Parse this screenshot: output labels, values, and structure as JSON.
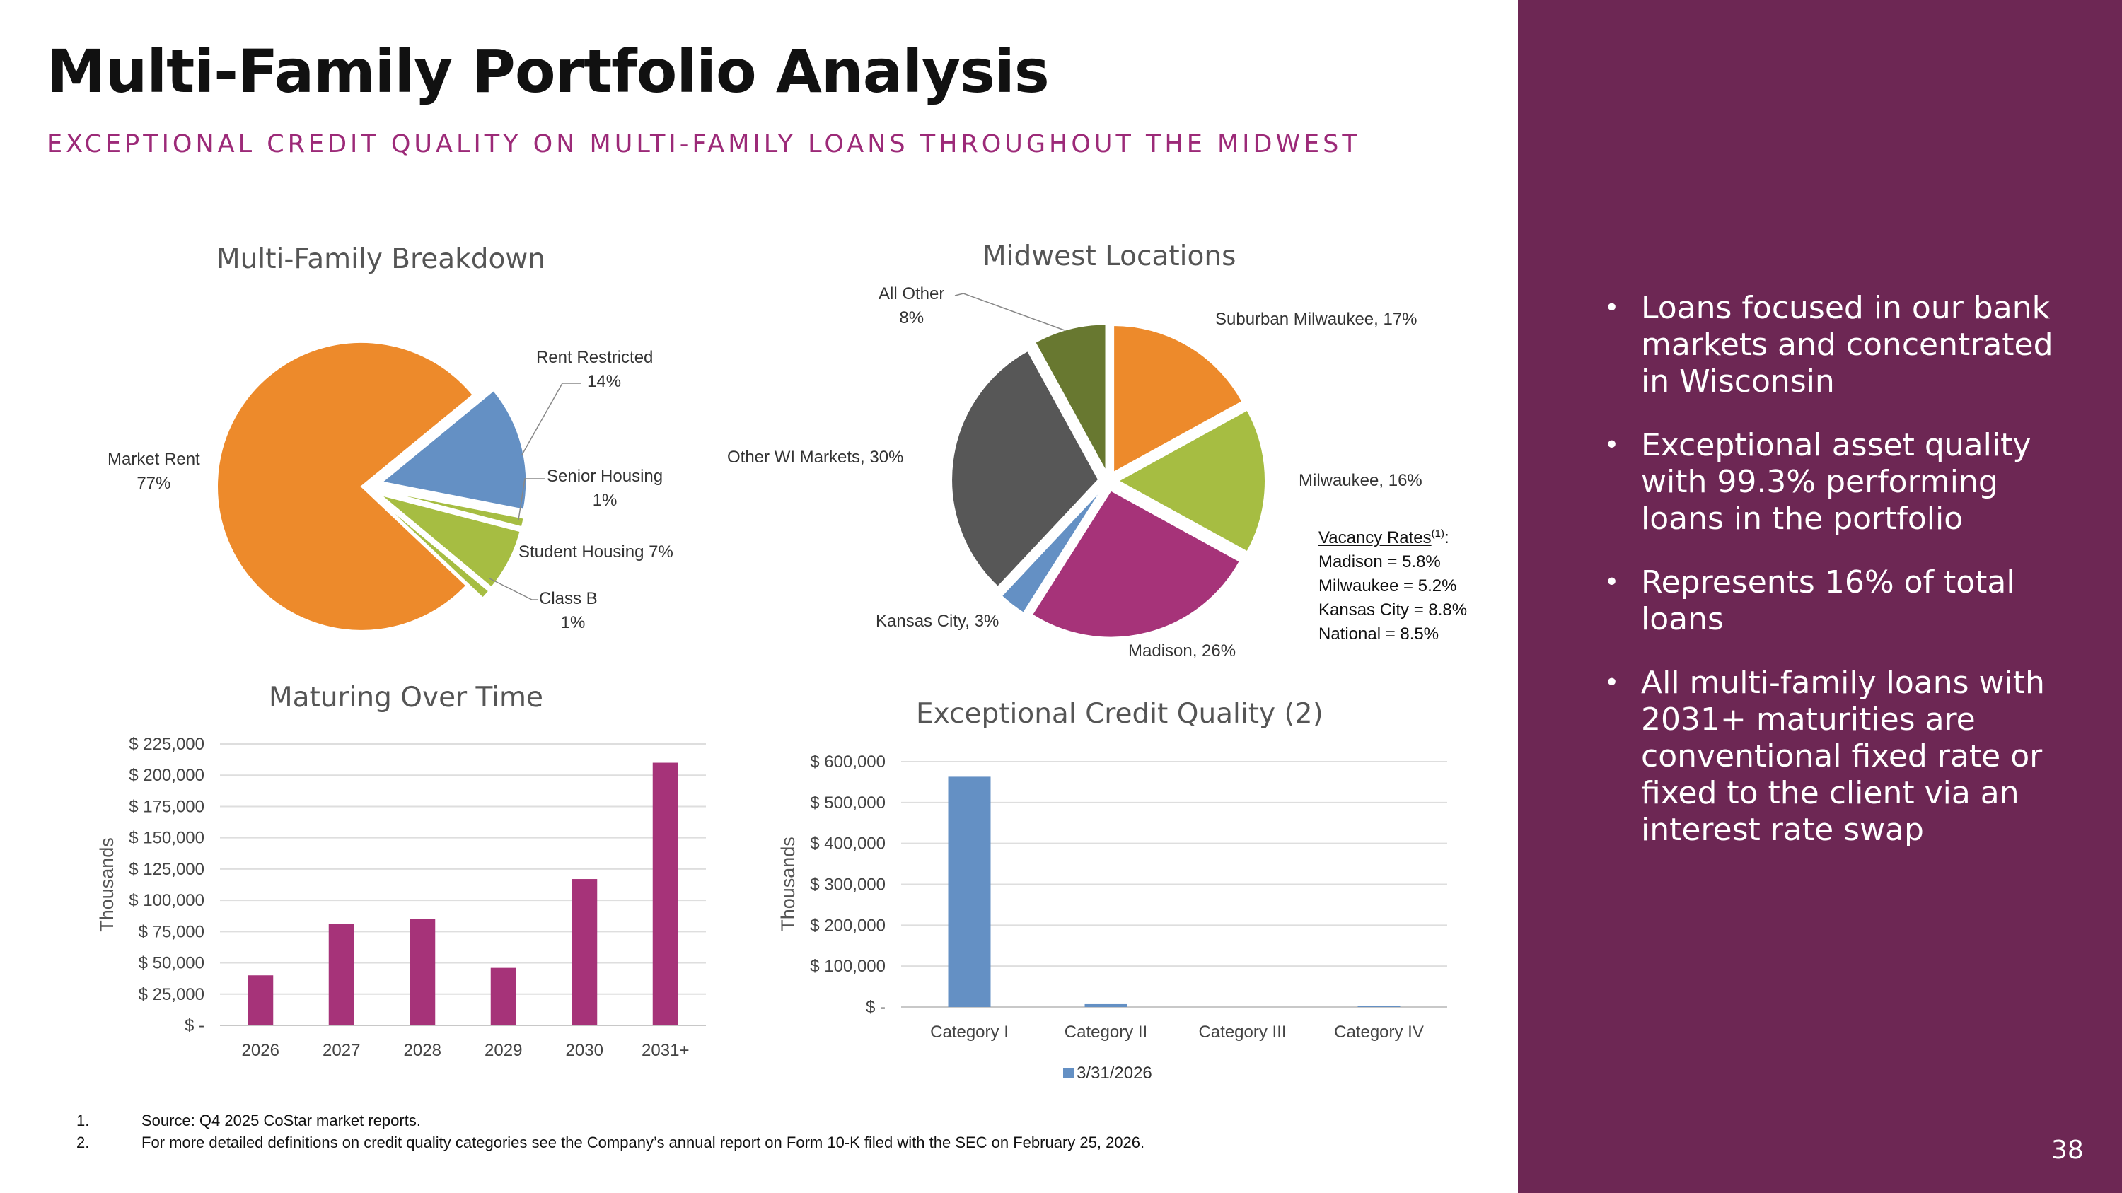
{
  "page": {
    "title": "Multi-Family Portfolio Analysis",
    "subtitle": "EXCEPTIONAL CREDIT QUALITY ON MULTI-FAMILY LOANS THROUGHOUT THE MIDWEST",
    "page_number": "38"
  },
  "sidebar": {
    "bullets": [
      "Loans focused in our bank markets and concentrated in Wisconsin",
      "Exceptional asset quality with 99.3% performing loans in the portfolio",
      "Represents 16% of total loans",
      "All multi-family loans with 2031+ maturities are conventional fixed rate or fixed to the client via an interest rate swap"
    ]
  },
  "vacancy": {
    "title": "Vacancy Rates",
    "title_sup": "(1)",
    "title_suffix": ":",
    "lines": [
      "Madison = 5.8%",
      "Milwaukee = 5.2%",
      "Kansas City = 8.8%",
      "National = 8.5%"
    ]
  },
  "footnotes": [
    {
      "num": "1.",
      "text": "Source: Q4 2025 CoStar market reports."
    },
    {
      "num": "2.",
      "text": "For more detailed definitions on credit quality categories see the  Company’s annual report on Form 10-K filed with the SEC on February 25, 2026."
    }
  ],
  "colors": {
    "orange": "#ed8a2b",
    "blue": "#6490c4",
    "green": "#a6bd42",
    "darkgreen": "#687830",
    "gray": "#575757",
    "magenta": "#a63379",
    "purple_bg": "#6d2754"
  },
  "chart_data": [
    {
      "id": "breakdown",
      "type": "pie",
      "title": "Multi-Family Breakdown",
      "slices": [
        {
          "name": "Rent Restricted",
          "value": 14,
          "label": [
            "Rent Restricted",
            "14%"
          ]
        },
        {
          "name": "Senior Housing",
          "value": 1,
          "label": [
            "Senior Housing",
            "1%"
          ]
        },
        {
          "name": "Student Housing",
          "value": 7,
          "label": [
            "Student Housing 7%"
          ]
        },
        {
          "name": "Class B",
          "value": 1,
          "label": [
            "Class B",
            "1%"
          ]
        },
        {
          "name": "Market Rent",
          "value": 77,
          "label": [
            "Market Rent",
            "77%"
          ]
        }
      ]
    },
    {
      "id": "locations",
      "type": "pie",
      "title": "Midwest Locations",
      "slices": [
        {
          "name": "Suburban Milwaukee",
          "value": 17,
          "label": [
            "Suburban Milwaukee, 17%"
          ]
        },
        {
          "name": "Milwaukee",
          "value": 16,
          "label": [
            "Milwaukee, 16%"
          ]
        },
        {
          "name": "Madison",
          "value": 26,
          "label": [
            "Madison, 26%"
          ]
        },
        {
          "name": "Kansas City",
          "value": 3,
          "label": [
            "Kansas City, 3%"
          ]
        },
        {
          "name": "Other WI Markets",
          "value": 30,
          "label": [
            "Other WI Markets, 30%"
          ]
        },
        {
          "name": "All Other",
          "value": 8,
          "label": [
            "All Other",
            "8%"
          ]
        }
      ]
    },
    {
      "id": "maturing",
      "type": "bar",
      "title": "Maturing Over Time",
      "ylabel": "Thousands",
      "categories": [
        "2026",
        "2027",
        "2028",
        "2029",
        "2030",
        "2031+"
      ],
      "values": [
        40000,
        81000,
        85000,
        46000,
        117000,
        210000
      ],
      "ylim": [
        0,
        225000
      ],
      "yticks": [
        "$ -",
        "$ 25,000",
        "$ 50,000",
        "$ 75,000",
        "$ 100,000",
        "$ 125,000",
        "$ 150,000",
        "$ 175,000",
        "$ 200,000",
        "$ 225,000"
      ],
      "grid": true
    },
    {
      "id": "credit",
      "type": "bar",
      "title": "Exceptional Credit Quality (2)",
      "ylabel": "Thousands",
      "categories": [
        "Category I",
        "Category II",
        "Category III",
        "Category IV"
      ],
      "series": [
        {
          "name": "3/31/2026",
          "values": [
            563000,
            7000,
            0,
            3000
          ]
        }
      ],
      "ylim": [
        0,
        600000
      ],
      "yticks": [
        "$ -",
        "$ 100,000",
        "$ 200,000",
        "$ 300,000",
        "$ 400,000",
        "$ 500,000",
        "$ 600,000"
      ],
      "grid": true,
      "legend": "bottom"
    }
  ]
}
